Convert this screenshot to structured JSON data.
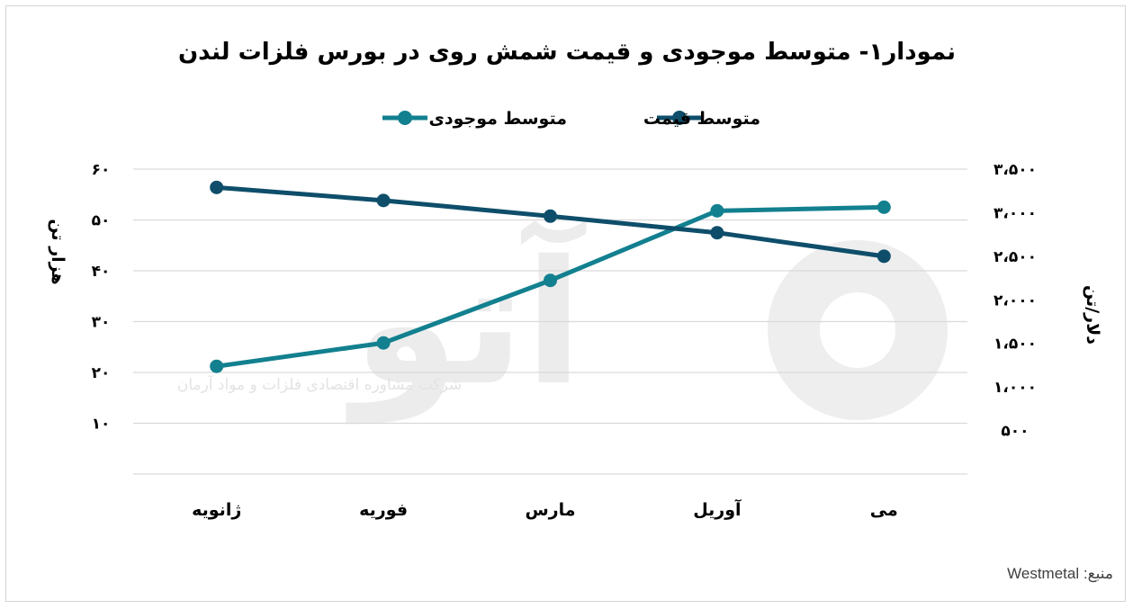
{
  "chart_data": {
    "type": "line",
    "title": "نمودار۱- متوسط موجودی و قیمت شمش روی در بورس فلزات لندن",
    "categories": [
      "ژانویه",
      "فوریه",
      "مارس",
      "آوریل",
      "می"
    ],
    "series": [
      {
        "name": "متوسط موجودی",
        "axis": "left",
        "color": "#12808f",
        "values": [
          21.2,
          25.8,
          38.1,
          51.8,
          52.5
        ]
      },
      {
        "name": "متوسط قیمت",
        "axis": "right",
        "color": "#0e4e6a",
        "values": [
          3290,
          3140,
          2960,
          2770,
          2500
        ]
      }
    ],
    "left_axis": {
      "label": "هزار تن",
      "ylim": [
        0,
        60
      ],
      "ticks": [
        {
          "v": 10,
          "t": "۱۰"
        },
        {
          "v": 20,
          "t": "۲۰"
        },
        {
          "v": 30,
          "t": "۳۰"
        },
        {
          "v": 40,
          "t": "۴۰"
        },
        {
          "v": 50,
          "t": "۵۰"
        },
        {
          "v": 60,
          "t": "۶۰"
        }
      ]
    },
    "right_axis": {
      "label": "دلار/تن",
      "ylim": [
        0,
        3500
      ],
      "ticks": [
        {
          "v": 500,
          "t": "۵۰۰"
        },
        {
          "v": 1000,
          "t": "۱،۰۰۰"
        },
        {
          "v": 1500,
          "t": "۱،۵۰۰"
        },
        {
          "v": 2000,
          "t": "۲،۰۰۰"
        },
        {
          "v": 2500,
          "t": "۲،۵۰۰"
        },
        {
          "v": 3000,
          "t": "۳،۰۰۰"
        },
        {
          "v": 3500,
          "t": "۳،۵۰۰"
        }
      ]
    },
    "legend_position": "top-center",
    "grid": true
  },
  "legend": [
    "متوسط قیمت",
    "متوسط موجودی"
  ],
  "watermark": {
    "text": "شرکت مشاوره اقتصادی فلزات و مواد آرمان",
    "logo": "آتو"
  },
  "source": "منبع: Westmetal"
}
